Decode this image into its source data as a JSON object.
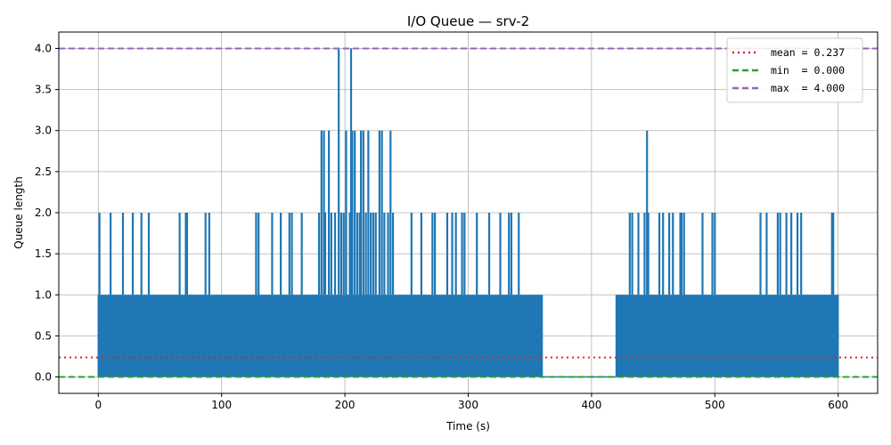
{
  "chart_data": {
    "type": "line",
    "title": "I/O Queue — srv-2",
    "xlabel": "Time (s)",
    "ylabel": "Queue length",
    "xlim": [
      -32,
      632
    ],
    "ylim": [
      -0.2,
      4.2
    ],
    "xticks": [
      0,
      100,
      200,
      300,
      400,
      500,
      600
    ],
    "yticks": [
      0.0,
      0.5,
      1.0,
      1.5,
      2.0,
      2.5,
      3.0,
      3.5,
      4.0
    ],
    "grid": true,
    "legend_position": "top-right",
    "series_color": "#1f77b4",
    "series": [
      {
        "name": "",
        "segments": [
          {
            "x_range": [
              0,
              360
            ],
            "baseline_range": [
              0,
              1
            ],
            "spikes": [
              {
                "x": 1,
                "y": 2.0
              },
              {
                "x": 10,
                "y": 2.0
              },
              {
                "x": 20,
                "y": 2.0
              },
              {
                "x": 28,
                "y": 2.0
              },
              {
                "x": 35,
                "y": 2.0
              },
              {
                "x": 41,
                "y": 2.0
              },
              {
                "x": 66,
                "y": 2.0
              },
              {
                "x": 71,
                "y": 2.0
              },
              {
                "x": 72,
                "y": 2.0
              },
              {
                "x": 87,
                "y": 2.0
              },
              {
                "x": 90,
                "y": 2.0
              },
              {
                "x": 128,
                "y": 2.0
              },
              {
                "x": 130,
                "y": 2.0
              },
              {
                "x": 141,
                "y": 2.0
              },
              {
                "x": 148,
                "y": 2.0
              },
              {
                "x": 155,
                "y": 2.0
              },
              {
                "x": 157,
                "y": 2.0
              },
              {
                "x": 165,
                "y": 2.0
              },
              {
                "x": 179,
                "y": 2.0
              },
              {
                "x": 181,
                "y": 3.0
              },
              {
                "x": 183,
                "y": 3.0
              },
              {
                "x": 184,
                "y": 2.0
              },
              {
                "x": 187,
                "y": 3.0
              },
              {
                "x": 189,
                "y": 2.0
              },
              {
                "x": 192,
                "y": 2.0
              },
              {
                "x": 195,
                "y": 4.0
              },
              {
                "x": 197,
                "y": 2.0
              },
              {
                "x": 199,
                "y": 2.0
              },
              {
                "x": 201,
                "y": 3.0
              },
              {
                "x": 204,
                "y": 2.0
              },
              {
                "x": 205,
                "y": 4.0
              },
              {
                "x": 206,
                "y": 3.0
              },
              {
                "x": 208,
                "y": 3.0
              },
              {
                "x": 210,
                "y": 2.0
              },
              {
                "x": 212,
                "y": 2.0
              },
              {
                "x": 213,
                "y": 3.0
              },
              {
                "x": 215,
                "y": 3.0
              },
              {
                "x": 217,
                "y": 2.0
              },
              {
                "x": 219,
                "y": 3.0
              },
              {
                "x": 221,
                "y": 2.0
              },
              {
                "x": 223,
                "y": 2.0
              },
              {
                "x": 225,
                "y": 2.0
              },
              {
                "x": 228,
                "y": 3.0
              },
              {
                "x": 230,
                "y": 3.0
              },
              {
                "x": 232,
                "y": 2.0
              },
              {
                "x": 235,
                "y": 2.0
              },
              {
                "x": 237,
                "y": 3.0
              },
              {
                "x": 239,
                "y": 2.0
              },
              {
                "x": 254,
                "y": 2.0
              },
              {
                "x": 262,
                "y": 2.0
              },
              {
                "x": 271,
                "y": 2.0
              },
              {
                "x": 273,
                "y": 2.0
              },
              {
                "x": 283,
                "y": 2.0
              },
              {
                "x": 287,
                "y": 2.0
              },
              {
                "x": 290,
                "y": 2.0
              },
              {
                "x": 295,
                "y": 2.0
              },
              {
                "x": 297,
                "y": 2.0
              },
              {
                "x": 307,
                "y": 2.0
              },
              {
                "x": 317,
                "y": 2.0
              },
              {
                "x": 326,
                "y": 2.0
              },
              {
                "x": 333,
                "y": 2.0
              },
              {
                "x": 335,
                "y": 2.0
              },
              {
                "x": 341,
                "y": 2.0
              }
            ]
          },
          {
            "x_range": [
              360,
              420
            ],
            "baseline_range": [
              0,
              0
            ],
            "spikes": []
          },
          {
            "x_range": [
              420,
              600
            ],
            "baseline_range": [
              0,
              1
            ],
            "spikes": [
              {
                "x": 431,
                "y": 2.0
              },
              {
                "x": 433,
                "y": 2.0
              },
              {
                "x": 438,
                "y": 2.0
              },
              {
                "x": 443,
                "y": 2.0
              },
              {
                "x": 445,
                "y": 3.0
              },
              {
                "x": 446,
                "y": 2.0
              },
              {
                "x": 455,
                "y": 2.0
              },
              {
                "x": 458,
                "y": 2.0
              },
              {
                "x": 463,
                "y": 2.0
              },
              {
                "x": 466,
                "y": 2.0
              },
              {
                "x": 472,
                "y": 2.0
              },
              {
                "x": 473,
                "y": 2.0
              },
              {
                "x": 475,
                "y": 2.0
              },
              {
                "x": 490,
                "y": 2.0
              },
              {
                "x": 498,
                "y": 2.0
              },
              {
                "x": 500,
                "y": 2.0
              },
              {
                "x": 537,
                "y": 2.0
              },
              {
                "x": 542,
                "y": 2.0
              },
              {
                "x": 551,
                "y": 2.0
              },
              {
                "x": 553,
                "y": 2.0
              },
              {
                "x": 558,
                "y": 2.0
              },
              {
                "x": 562,
                "y": 2.0
              },
              {
                "x": 567,
                "y": 2.0
              },
              {
                "x": 570,
                "y": 2.0
              },
              {
                "x": 595,
                "y": 2.0
              },
              {
                "x": 596,
                "y": 2.0
              }
            ]
          }
        ]
      }
    ],
    "hlines": [
      {
        "label": "mean = 0.237",
        "y": 0.237,
        "color": "#d62728",
        "style": "dotted"
      },
      {
        "label": "min  = 0.000",
        "y": 0.0,
        "color": "#2ca02c",
        "style": "dashed"
      },
      {
        "label": "max  = 4.000",
        "y": 4.0,
        "color": "#9467bd",
        "style": "dashed"
      }
    ]
  }
}
